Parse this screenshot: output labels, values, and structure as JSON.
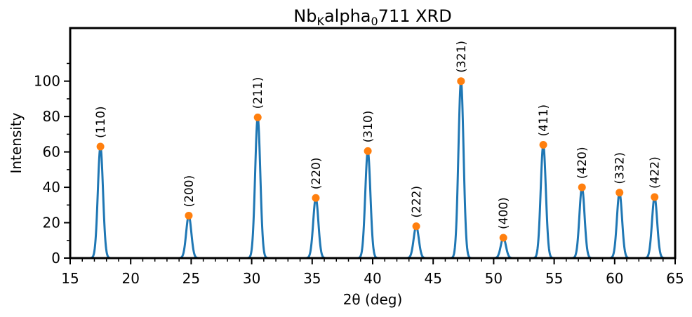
{
  "chart_data": {
    "type": "line",
    "title": "Nb_K alpha_0711 XRD",
    "title_parts": {
      "base1": "Nb",
      "sub1": "K",
      "base2": "alpha",
      "sub2": "0",
      "base3": "711 XRD"
    },
    "xlabel": "2θ (deg)",
    "ylabel": "Intensity",
    "xlim": [
      15,
      65
    ],
    "ylim": [
      0,
      130
    ],
    "xticks": [
      15,
      20,
      25,
      30,
      35,
      40,
      45,
      50,
      55,
      60,
      65
    ],
    "yticks": [
      0,
      20,
      40,
      60,
      80,
      100
    ],
    "grid": false,
    "line_color": "#1f77b4",
    "marker_color": "#ff7f0e",
    "peak_width_fwhm_deg": 0.5,
    "peaks": [
      {
        "x": 17.5,
        "y": 63,
        "label": "(110)"
      },
      {
        "x": 24.8,
        "y": 24,
        "label": "(200)"
      },
      {
        "x": 30.5,
        "y": 79.5,
        "label": "(211)"
      },
      {
        "x": 35.3,
        "y": 34,
        "label": "(220)"
      },
      {
        "x": 39.6,
        "y": 60.5,
        "label": "(310)"
      },
      {
        "x": 43.6,
        "y": 18,
        "label": "(222)"
      },
      {
        "x": 47.3,
        "y": 100,
        "label": "(321)"
      },
      {
        "x": 50.8,
        "y": 11.5,
        "label": "(400)"
      },
      {
        "x": 54.1,
        "y": 64,
        "label": "(411)"
      },
      {
        "x": 57.3,
        "y": 40,
        "label": "(420)"
      },
      {
        "x": 60.4,
        "y": 37,
        "label": "(332)"
      },
      {
        "x": 63.3,
        "y": 34.5,
        "label": "(422)"
      }
    ]
  }
}
